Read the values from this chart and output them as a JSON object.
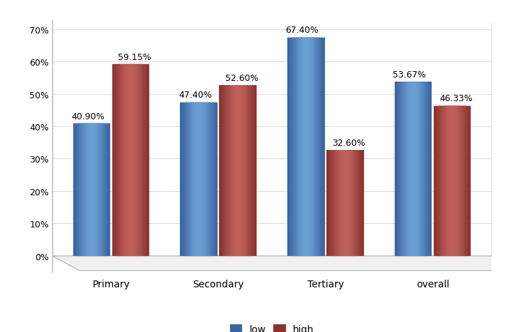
{
  "categories": [
    "Primary",
    "Secondary",
    "Tertiary",
    "overall"
  ],
  "low_values": [
    40.9,
    47.4,
    67.4,
    53.67
  ],
  "high_values": [
    59.15,
    52.6,
    32.6,
    46.33
  ],
  "low_labels": [
    "40.90%",
    "47.40%",
    "67.40%",
    "53.67%"
  ],
  "high_labels": [
    "59.15%",
    "52.60%",
    "32.60%",
    "46.33%"
  ],
  "low_color_mid": "#6B9FD4",
  "low_color_edge": "#3A65A0",
  "low_color_top_mid": "#82B0E0",
  "high_color_mid": "#C0605A",
  "high_color_edge": "#8B3330",
  "high_color_top_mid": "#CC7570",
  "floor_color": "#F0F0F0",
  "floor_edge": "#AAAAAA",
  "legend_low": "low",
  "legend_high": "high",
  "ylim": [
    0,
    70
  ],
  "yticks": [
    0,
    10,
    20,
    30,
    40,
    50,
    60,
    70
  ],
  "ytick_labels": [
    "0%",
    "10%",
    "20%",
    "30%",
    "40%",
    "50%",
    "60%",
    "70%"
  ],
  "background_color": "#FFFFFF",
  "label_fontsize": 9,
  "tick_fontsize": 9,
  "legend_fontsize": 10,
  "bar_width": 0.35,
  "ellipse_ratio": 0.18
}
